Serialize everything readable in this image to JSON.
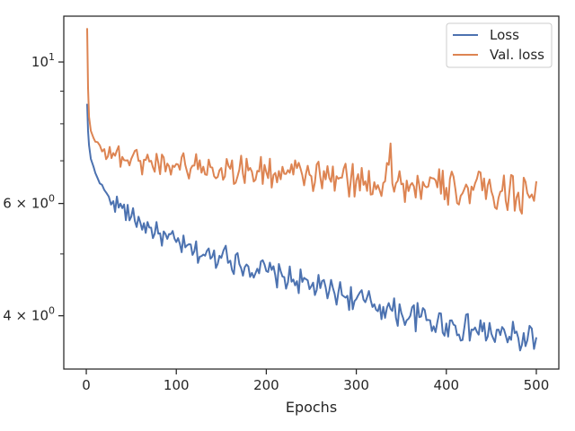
{
  "chart_data": {
    "type": "line",
    "title": "",
    "xlabel": "Epochs",
    "ylabel": "",
    "xlim": [
      -25,
      525
    ],
    "ylim": [
      3.3,
      11.8
    ],
    "yscale": "log",
    "grid": false,
    "legend_position": "top-right",
    "x_ticks": [
      0,
      100,
      200,
      300,
      400,
      500
    ],
    "x_tick_labels": [
      "0",
      "100",
      "200",
      "300",
      "400",
      "500"
    ],
    "y_major_ticks": [
      10,
      6,
      4
    ],
    "y_major_tick_labels": [
      {
        "base": "10",
        "exp": "1",
        "coef": ""
      },
      {
        "base": "10",
        "exp": "0",
        "coef": "6 × "
      },
      {
        "base": "10",
        "exp": "0",
        "coef": "4 × "
      }
    ],
    "y_minor_ticks": [
      5,
      7,
      8,
      9
    ],
    "series": [
      {
        "name": "Loss",
        "color": "#4c72b0",
        "x": [
          1,
          2,
          3,
          5,
          8,
          10,
          12,
          15,
          20,
          25,
          30,
          40,
          50,
          60,
          70,
          80,
          90,
          100,
          110,
          120,
          130,
          140,
          150,
          155,
          160,
          170,
          180,
          190,
          200,
          210,
          220,
          230,
          240,
          250,
          260,
          270,
          280,
          290,
          300,
          310,
          320,
          330,
          340,
          350,
          360,
          370,
          380,
          390,
          400,
          410,
          420,
          430,
          440,
          450,
          460,
          470,
          480,
          490,
          495,
          500
        ],
        "y": [
          8.6,
          7.8,
          7.4,
          7.05,
          6.85,
          6.7,
          6.6,
          6.45,
          6.3,
          6.15,
          6.05,
          5.9,
          5.72,
          5.6,
          5.5,
          5.38,
          5.28,
          5.22,
          5.12,
          5.05,
          4.99,
          4.95,
          4.93,
          5.15,
          4.88,
          4.82,
          4.78,
          4.74,
          4.7,
          4.63,
          4.6,
          4.56,
          4.52,
          4.45,
          4.42,
          4.38,
          4.35,
          4.3,
          4.25,
          4.2,
          4.17,
          4.13,
          4.07,
          4.04,
          4.0,
          3.98,
          3.94,
          3.91,
          3.89,
          3.86,
          3.83,
          3.8,
          3.78,
          3.75,
          3.73,
          3.71,
          3.69,
          3.66,
          3.82,
          3.7
        ]
      },
      {
        "name": "Val. loss",
        "color": "#dd8452",
        "x": [
          1,
          2,
          3,
          5,
          8,
          10,
          15,
          20,
          30,
          40,
          50,
          60,
          70,
          80,
          90,
          100,
          110,
          120,
          130,
          140,
          150,
          160,
          170,
          180,
          190,
          200,
          210,
          220,
          230,
          240,
          250,
          260,
          270,
          280,
          290,
          300,
          310,
          320,
          330,
          338,
          340,
          350,
          360,
          370,
          380,
          390,
          400,
          410,
          420,
          430,
          440,
          450,
          460,
          470,
          480,
          490,
          495,
          500
        ],
        "y": [
          11.3,
          9.1,
          8.2,
          7.8,
          7.6,
          7.5,
          7.4,
          7.3,
          7.2,
          7.1,
          7.05,
          7.0,
          6.98,
          6.95,
          6.93,
          6.92,
          6.9,
          6.88,
          6.85,
          6.83,
          6.82,
          6.8,
          6.78,
          6.76,
          6.75,
          6.72,
          6.7,
          6.68,
          6.66,
          6.64,
          6.62,
          6.6,
          6.58,
          6.56,
          6.54,
          6.52,
          6.5,
          6.48,
          6.46,
          7.45,
          6.45,
          6.43,
          6.41,
          6.4,
          6.38,
          6.36,
          6.35,
          6.33,
          6.32,
          6.3,
          6.29,
          6.27,
          6.26,
          6.25,
          6.24,
          6.23,
          6.2,
          6.5
        ]
      }
    ]
  }
}
